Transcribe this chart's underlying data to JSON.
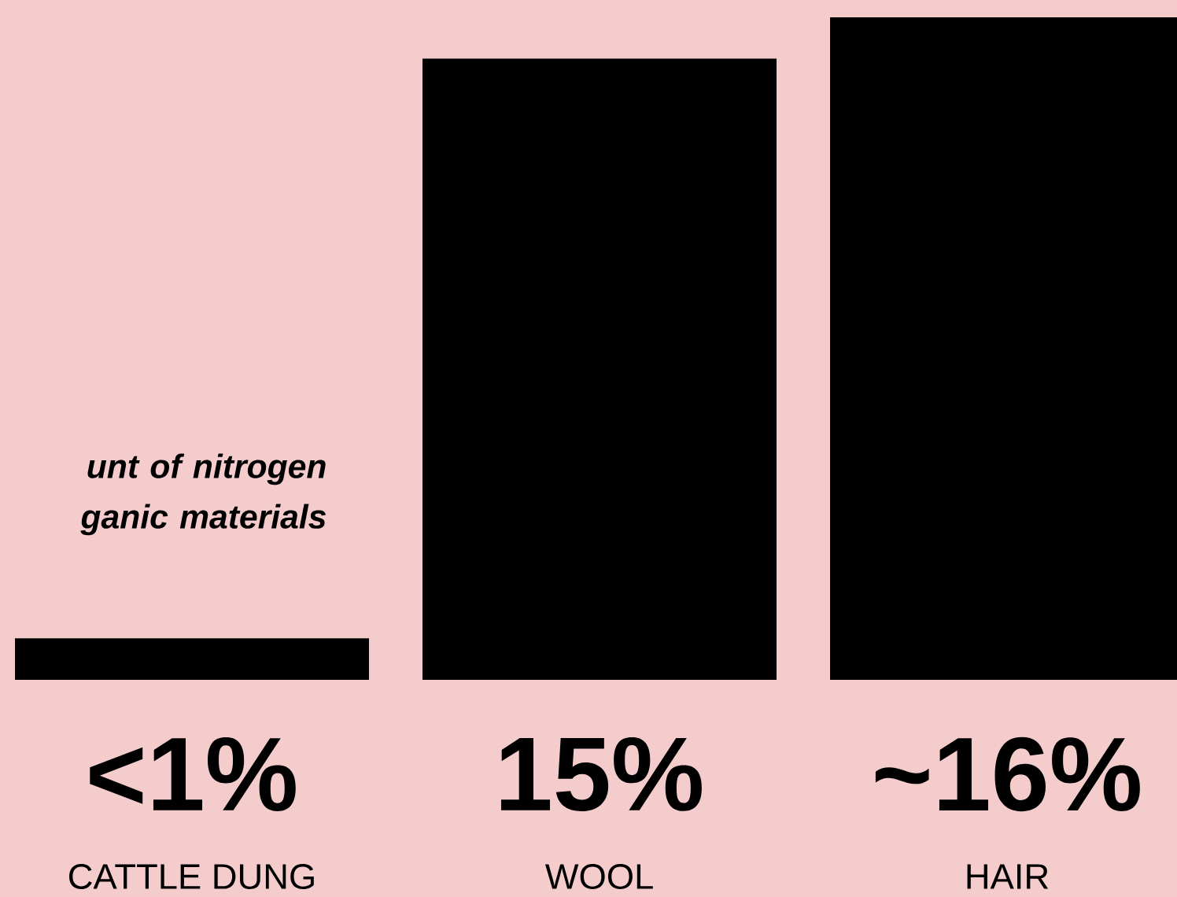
{
  "chart_data": {
    "type": "bar",
    "title": "unt of nitrogen ganic materials",
    "categories": [
      "CATTLE DUNG",
      "WOOL",
      "HAIR"
    ],
    "values": [
      1,
      15,
      16
    ],
    "value_labels": [
      "<1%",
      "15%",
      "~16%"
    ],
    "color": "#000000"
  }
}
